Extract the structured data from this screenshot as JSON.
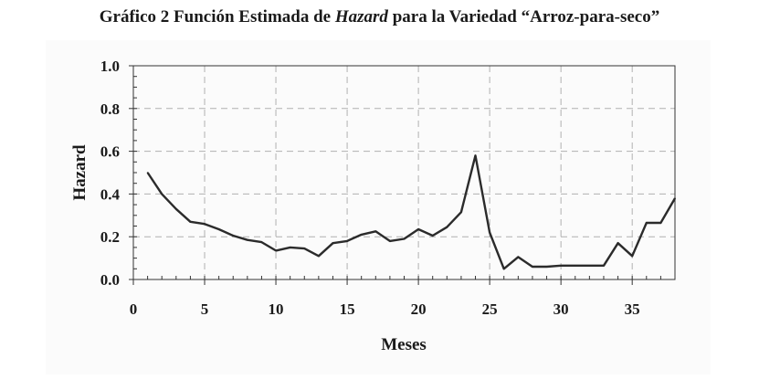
{
  "title": {
    "prefix": "Gráfico 2 Función Estimada de ",
    "italic": "Hazard",
    "suffix": " para la Variedad “Arroz-para-seco”"
  },
  "chart_data": {
    "type": "line",
    "xlabel": "Meses",
    "ylabel": "Hazard",
    "xlim": [
      0,
      38
    ],
    "ylim": [
      0,
      1.0
    ],
    "xticks": [
      0,
      5,
      10,
      15,
      20,
      25,
      30,
      35
    ],
    "yticks": [
      0.0,
      0.2,
      0.4,
      0.6,
      0.8,
      1.0
    ],
    "xtick_labels": [
      "0",
      "5",
      "10",
      "15",
      "20",
      "25",
      "30",
      "35"
    ],
    "ytick_labels": [
      "0.0",
      "0.2",
      "0.4",
      "0.6",
      "0.8",
      "1.0"
    ],
    "grid": true,
    "series": [
      {
        "color": "#2b2b2b",
        "x": [
          1,
          2,
          3,
          4,
          5,
          6,
          7,
          8,
          9,
          10,
          11,
          12,
          13,
          14,
          15,
          16,
          17,
          18,
          19,
          20,
          21,
          22,
          23,
          24,
          25,
          26,
          27,
          28,
          29,
          30,
          31,
          32,
          33,
          34,
          35,
          36,
          37,
          38
        ],
        "y": [
          0.5,
          0.4,
          0.33,
          0.27,
          0.26,
          0.235,
          0.205,
          0.185,
          0.175,
          0.135,
          0.15,
          0.145,
          0.11,
          0.17,
          0.18,
          0.21,
          0.225,
          0.18,
          0.19,
          0.235,
          0.205,
          0.245,
          0.315,
          0.58,
          0.22,
          0.05,
          0.105,
          0.06,
          0.06,
          0.065,
          0.065,
          0.065,
          0.065,
          0.17,
          0.11,
          0.265,
          0.265,
          0.38
        ]
      }
    ]
  }
}
